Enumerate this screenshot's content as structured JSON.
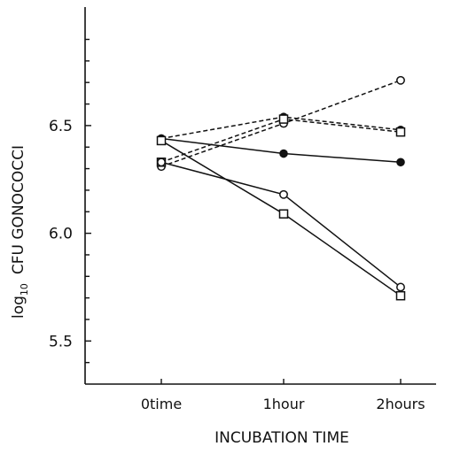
{
  "chart_data": {
    "type": "line",
    "xlabel": "INCUBATION TIME",
    "ylabel_main": "log",
    "ylabel_sub": "10",
    "ylabel_rest": "CFU GONOCOCCI",
    "categories": [
      "0time",
      "1hour",
      "2hours"
    ],
    "yticks": [
      "5.5",
      "6.0",
      "6.5"
    ],
    "ytick_values": [
      5.5,
      6.0,
      6.5
    ],
    "ylim": [
      5.3,
      7.05
    ],
    "grid": false,
    "series": [
      {
        "style": "dashed",
        "marker": "open-circle",
        "values": [
          6.31,
          6.51,
          6.71
        ]
      },
      {
        "style": "dashed",
        "marker": "filled-circle",
        "values": [
          6.44,
          6.54,
          6.48
        ]
      },
      {
        "style": "dashed",
        "marker": "open-square",
        "values": [
          6.33,
          6.53,
          6.47
        ]
      },
      {
        "style": "solid",
        "marker": "filled-circle",
        "values": [
          6.44,
          6.37,
          6.33
        ]
      },
      {
        "style": "solid",
        "marker": "open-circle",
        "values": [
          6.33,
          6.18,
          5.75
        ]
      },
      {
        "style": "solid",
        "marker": "open-square",
        "values": [
          6.43,
          6.09,
          5.71
        ]
      }
    ]
  }
}
